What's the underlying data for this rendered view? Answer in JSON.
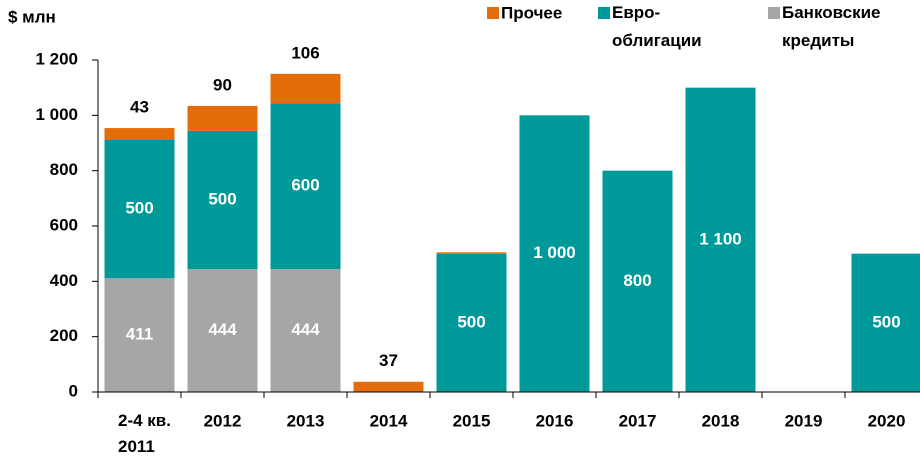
{
  "chart_data": {
    "type": "stacked_bar",
    "y_axis_label": "$ млн",
    "categories": [
      "2-4 кв. 2011",
      "2012",
      "2013",
      "2014",
      "2015",
      "2016",
      "2017",
      "2018",
      "2019",
      "2020"
    ],
    "series": [
      {
        "name": "Банковские кредиты",
        "color": "#a6a6a6",
        "values": [
          411,
          444,
          444,
          null,
          null,
          null,
          null,
          null,
          null,
          null
        ]
      },
      {
        "name": "Евро-облигации",
        "color": "#009999",
        "values": [
          500,
          500,
          600,
          null,
          500,
          1000,
          800,
          1100,
          null,
          500
        ],
        "value_labels": [
          "500",
          "500",
          "600",
          null,
          "500",
          "1 000",
          "800",
          "1 100",
          null,
          "500"
        ]
      },
      {
        "name": "Прочее",
        "color": "#e46c0a",
        "values": [
          43,
          90,
          106,
          37,
          5,
          null,
          null,
          null,
          null,
          null
        ],
        "value_labels": [
          "43",
          "90",
          "106",
          "37",
          null,
          null,
          null,
          null,
          null,
          null
        ]
      }
    ],
    "legend_order": [
      2,
      1,
      0
    ],
    "legend": "top-right",
    "ylim": [
      0,
      1200
    ],
    "yticks": [
      0,
      200,
      400,
      600,
      800,
      {
        "value": 1000,
        "label": "1 000"
      },
      {
        "value": 1200,
        "label": "1 200"
      }
    ]
  }
}
